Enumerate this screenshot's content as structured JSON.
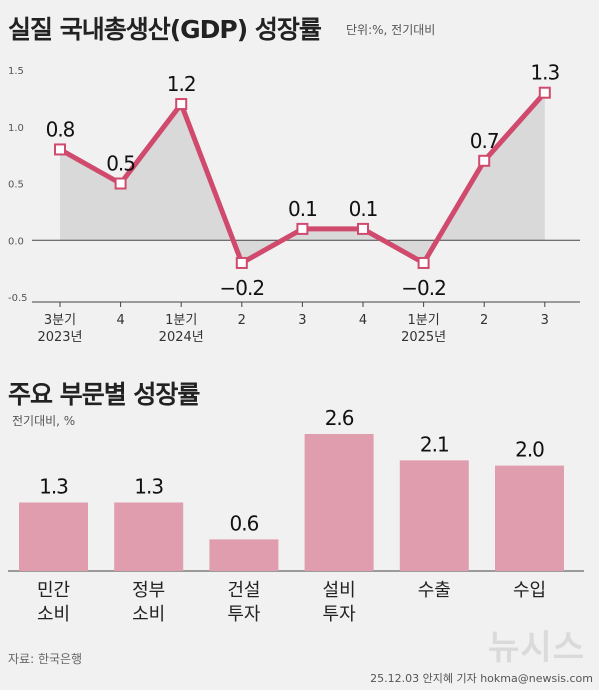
{
  "header": {
    "title": "실질 국내총생산(GDP) 성장률",
    "unit": "단위:%, 전기대비"
  },
  "chart_data": [
    {
      "type": "line",
      "title": "실질 국내총생산(GDP) 성장률",
      "unit": "단위:%, 전기대비",
      "categories": [
        "3분기|2023년",
        "4",
        "1분기|2024년",
        "2",
        "3",
        "4",
        "1분기|2025년",
        "2",
        "3"
      ],
      "values": [
        0.8,
        0.5,
        1.2,
        -0.2,
        0.1,
        0.1,
        -0.2,
        0.7,
        1.3
      ],
      "value_labels": [
        "0.8",
        "0.5",
        "1.2",
        "−0.2",
        "0.1",
        "0.1",
        "−0.2",
        "0.7",
        "1.3"
      ],
      "y_ticks": [
        "1.5",
        "1.0",
        "0.5",
        "0.0",
        "-0.5"
      ],
      "ylim": [
        -0.5,
        1.5
      ],
      "grid": false,
      "colors": {
        "line": "#d04a6e",
        "area": "#d9d9d9",
        "marker_fill": "#ffffff"
      }
    },
    {
      "type": "bar",
      "title": "주요 부문별 성장률",
      "unit": "전기대비, %",
      "categories": [
        "민간|소비",
        "정부|소비",
        "건설|투자",
        "설비|투자",
        "수출",
        "수입"
      ],
      "values": [
        1.3,
        1.3,
        0.6,
        2.6,
        2.1,
        2.0
      ],
      "value_labels": [
        "1.3",
        "1.3",
        "0.6",
        "2.6",
        "2.1",
        "2.0"
      ],
      "ylim": [
        0,
        2.6
      ],
      "colors": {
        "bar": "#df9dae"
      }
    }
  ],
  "footer": {
    "source": "자료: 한국은행",
    "credit": "25.12.03 안지혜 기자 hokma@newsis.com",
    "logo": "뉴시스"
  }
}
